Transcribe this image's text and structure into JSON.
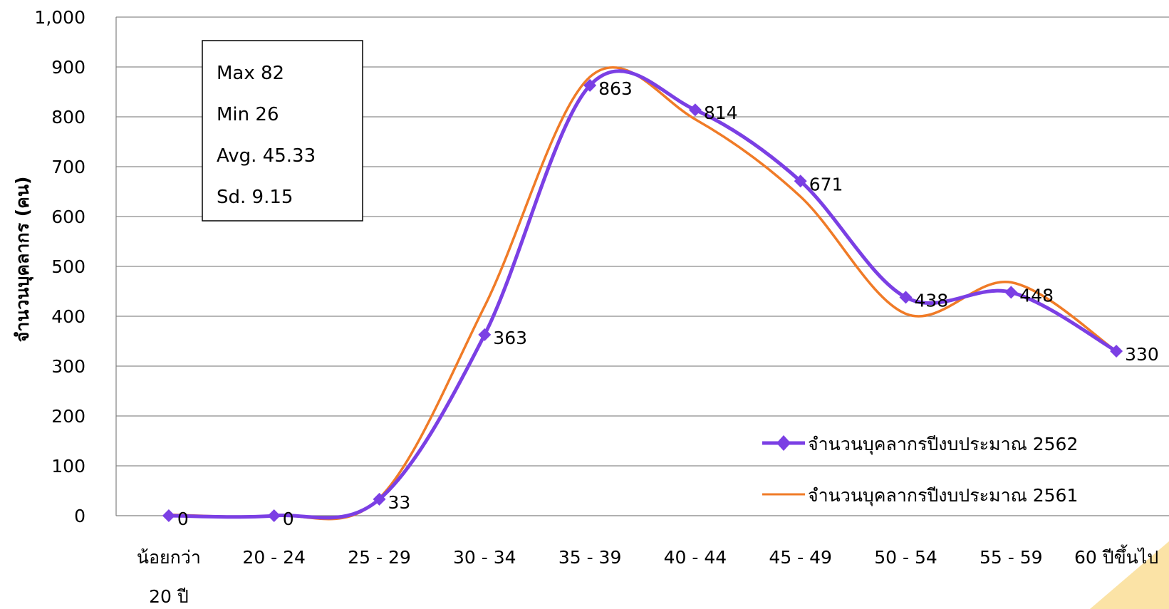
{
  "chart_data": {
    "type": "line",
    "categories": [
      "น้อยกว่า|20 ปี",
      "20 - 24",
      "25 - 29",
      "30 - 34",
      "35 - 39",
      "40 - 44",
      "45 - 49",
      "50 - 54",
      "55 - 59",
      "60 ปีขึ้นไป"
    ],
    "ylabel": "จำนวนบุคลากร (คน)",
    "ylim": [
      0,
      1000
    ],
    "yticks": [
      "0",
      "100",
      "200",
      "300",
      "400",
      "500",
      "600",
      "700",
      "800",
      "900",
      "1,000"
    ],
    "grid": true,
    "legend_position": "bottom-right",
    "series": [
      {
        "name": "จำนวนบุคลากรปีงบประมาณ 2562",
        "color": "#7B3FE4",
        "marker": "diamond",
        "values": [
          0,
          0,
          33,
          363,
          863,
          814,
          671,
          438,
          448,
          330
        ],
        "data_labels": [
          "0",
          "0",
          "33",
          "363",
          "863",
          "814",
          "671",
          "438",
          "448",
          "330"
        ]
      },
      {
        "name": "จำนวนบุคลากรปีงบประมาณ 2561",
        "color": "#F07B27",
        "marker": "none",
        "values": [
          2,
          0,
          35,
          420,
          880,
          795,
          640,
          405,
          468,
          330
        ]
      }
    ],
    "stats_box": {
      "max": "Max  82",
      "min": "Min  26",
      "avg": "Avg. 45.33",
      "sd": "Sd.  9.15"
    }
  }
}
